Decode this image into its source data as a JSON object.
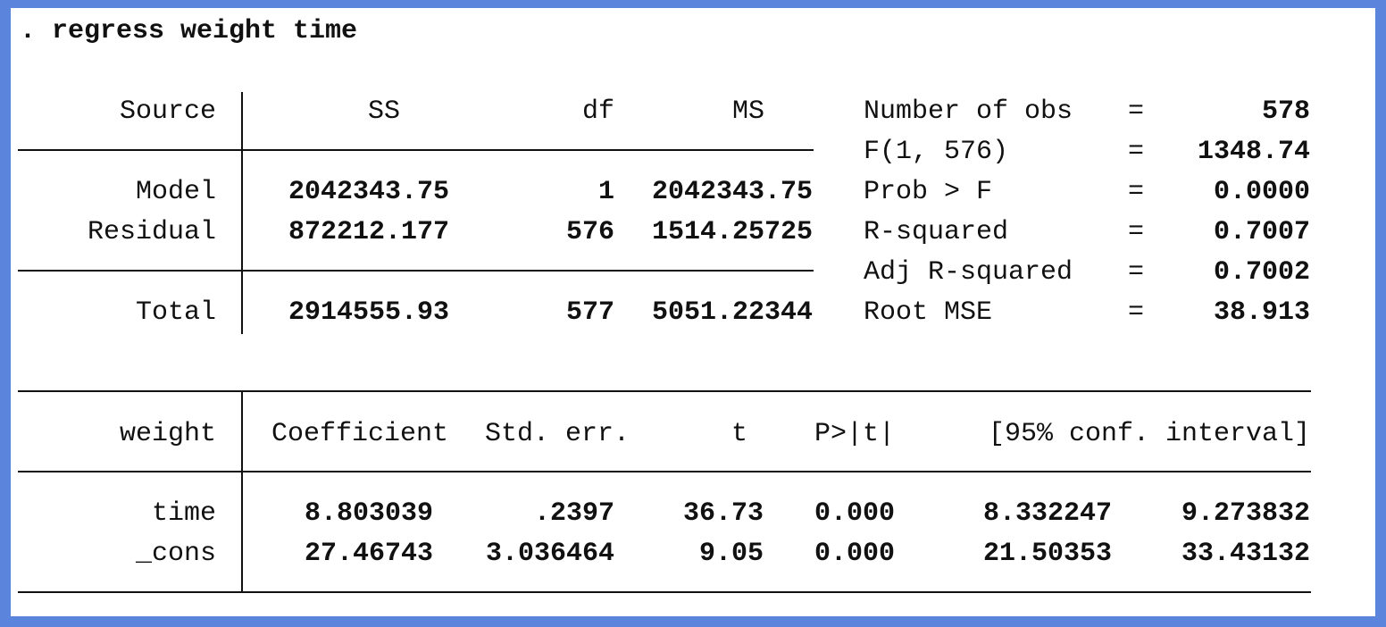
{
  "command": ". regress weight time",
  "anova": {
    "headers": {
      "source": "Source",
      "ss": "SS",
      "df": "df",
      "ms": "MS"
    },
    "rows": [
      {
        "source": "Model",
        "ss": "2042343.75",
        "df": "1",
        "ms": "2042343.75"
      },
      {
        "source": "Residual",
        "ss": "872212.177",
        "df": "576",
        "ms": "1514.25725"
      },
      {
        "source": "Total",
        "ss": "2914555.93",
        "df": "577",
        "ms": "5051.22344"
      }
    ]
  },
  "stats": [
    {
      "label": "Number of obs",
      "eq": "=",
      "value": "578"
    },
    {
      "label": "F(1, 576)",
      "eq": "=",
      "value": "1348.74"
    },
    {
      "label": "Prob > F",
      "eq": "=",
      "value": "0.0000"
    },
    {
      "label": "R-squared",
      "eq": "=",
      "value": "0.7007"
    },
    {
      "label": "Adj R-squared",
      "eq": "=",
      "value": "0.7002"
    },
    {
      "label": "Root MSE",
      "eq": "=",
      "value": "38.913"
    }
  ],
  "coef": {
    "headers": {
      "var": "weight",
      "coef": "Coefficient",
      "se": "Std. err.",
      "t": "t",
      "p": "P>|t|",
      "ci": "[95% conf. interval]"
    },
    "rows": [
      {
        "var": "time",
        "coef": "8.803039",
        "se": ".2397",
        "t": "36.73",
        "p": "0.000",
        "lo": "8.332247",
        "hi": "9.273832"
      },
      {
        "var": "_cons",
        "coef": "27.46743",
        "se": "3.036464",
        "t": "9.05",
        "p": "0.000",
        "lo": "21.50353",
        "hi": "33.43132"
      }
    ]
  },
  "colors": {
    "border": "#5b84dd",
    "background": "#ffffff",
    "text": "#111111"
  }
}
